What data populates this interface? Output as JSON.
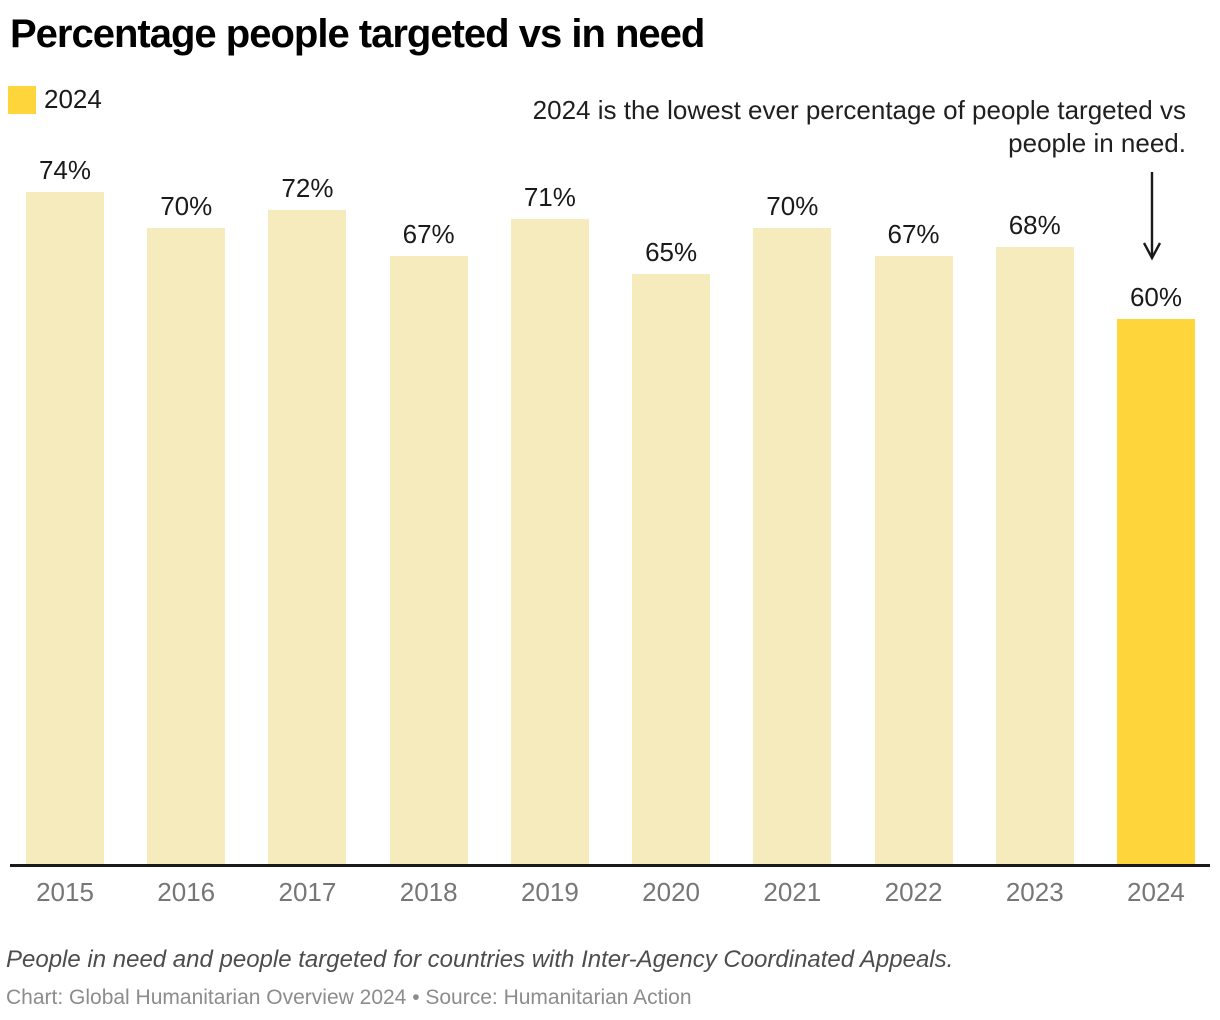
{
  "header": {
    "title": "Percentage people targeted vs in need"
  },
  "legend": {
    "label": "2024",
    "swatch_color": "#ffd53c"
  },
  "annotation": {
    "line1": "2024 is the lowest ever percentage of people targeted vs",
    "line2": "people in need.",
    "arrow_icon": "down-arrow"
  },
  "chart_data": {
    "type": "bar",
    "title": "Percentage people targeted vs in need",
    "categories": [
      "2015",
      "2016",
      "2017",
      "2018",
      "2019",
      "2020",
      "2021",
      "2022",
      "2023",
      "2024"
    ],
    "values": [
      74,
      70,
      72,
      67,
      71,
      65,
      70,
      67,
      68,
      60
    ],
    "unit": "%",
    "highlight_category": "2024",
    "bar_color": "#f5ebbd",
    "highlight_color": "#ffd53c",
    "axis_color": "#1a1a1a",
    "xlabel": "",
    "ylabel": "",
    "grid": false,
    "legend_position": "top-left",
    "value_labels_shown": true
  },
  "footer": {
    "note": "People in need and people targeted for countries with Inter-Agency Coordinated Appeals.",
    "credit": "Chart: Global Humanitarian Overview 2024 • Source: Humanitarian Action"
  }
}
